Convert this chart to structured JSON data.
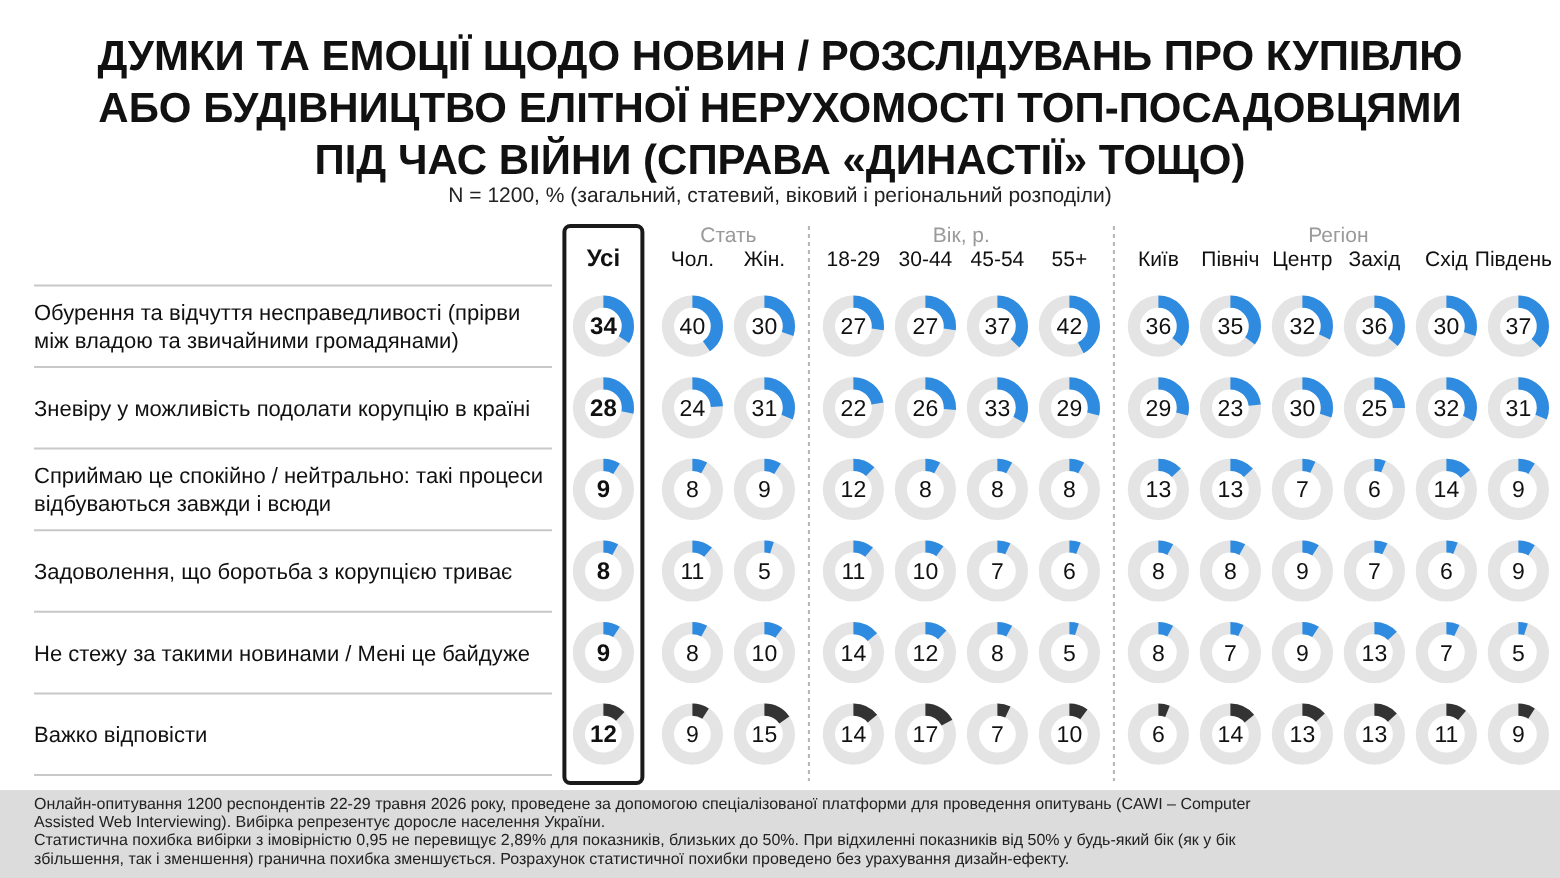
{
  "chart_data": {
    "type": "heatmap",
    "title": "ДУМКИ ТА ЕМОЦІЇ ЩОДО НОВИН / РОЗСЛІДУВАНЬ ПРО КУПІВЛЮ АБО БУДІВНИЦТВО ЕЛІТНОЇ НЕРУХОМОСТІ ТОП-ПОСАДОВЦЯМИ ПІД ЧАС ВІЙНИ (СПРАВА «ДИНАСТІЇ» ТОЩО)",
    "subtitle": "N = 1200, % (загальний, статевий, віковий і регіональний розподіли)",
    "categories": [
      "Усі",
      "Чол.",
      "Жін.",
      "18-29",
      "30-44",
      "45-54",
      "55+",
      "Київ",
      "Північ",
      "Центр",
      "Захід",
      "Схід",
      "Південь"
    ],
    "y_categories": [
      "Обурення та відчуття несправедливості (прірви між владою та звичайними громадянами)",
      "Зневіру у можливість подолати корупцію в країні",
      "Сприймаю це спокійно / нейтрально: такі процеси відбуваються завжди і всюди",
      "Задоволення, що боротьба з корупцією триває",
      "Не стежу за такими новинами / Мені це байдуже",
      "Важко відповісти"
    ],
    "cells": [
      [
        34,
        40,
        30,
        27,
        27,
        37,
        42,
        36,
        35,
        32,
        36,
        30,
        37
      ],
      [
        28,
        24,
        31,
        22,
        26,
        33,
        29,
        29,
        23,
        30,
        25,
        32,
        31
      ],
      [
        9,
        8,
        9,
        12,
        8,
        8,
        8,
        13,
        13,
        7,
        6,
        14,
        9
      ],
      [
        8,
        11,
        5,
        11,
        10,
        7,
        6,
        8,
        8,
        9,
        7,
        6,
        9
      ],
      [
        9,
        8,
        10,
        14,
        12,
        8,
        5,
        8,
        7,
        9,
        13,
        7,
        5
      ],
      [
        12,
        9,
        15,
        14,
        17,
        7,
        10,
        6,
        14,
        13,
        13,
        11,
        9
      ]
    ],
    "colors": [
      "#2e8be0",
      "#2e8be0",
      "#2e8be0",
      "#2e8be0",
      "#2e8be0",
      "#333333"
    ],
    "data_labels": true,
    "annotations": [
      "Стать",
      "Вік, р.",
      "Регіон",
      "Онлайн-опитування 1200 респондентів 22-29 травня 2026 року, проведене за допомогою спеціалізованої платформи для проведення опитувань (CAWI – Computer Assisted Web Interviewing). Вибірка репрезентує доросле населення України.",
      "Статистична похибка вибірки з імовірністю 0,95 не перевищує 2,89% для показників, близьких до 50%. При відхиленні показників від 50% у будь-який бік (як у бік збільшення, так і зменшення) гранична похибка зменшується. Розрахунок статистичної похибки проведено без урахування дизайн-ефекту."
    ]
  }
}
